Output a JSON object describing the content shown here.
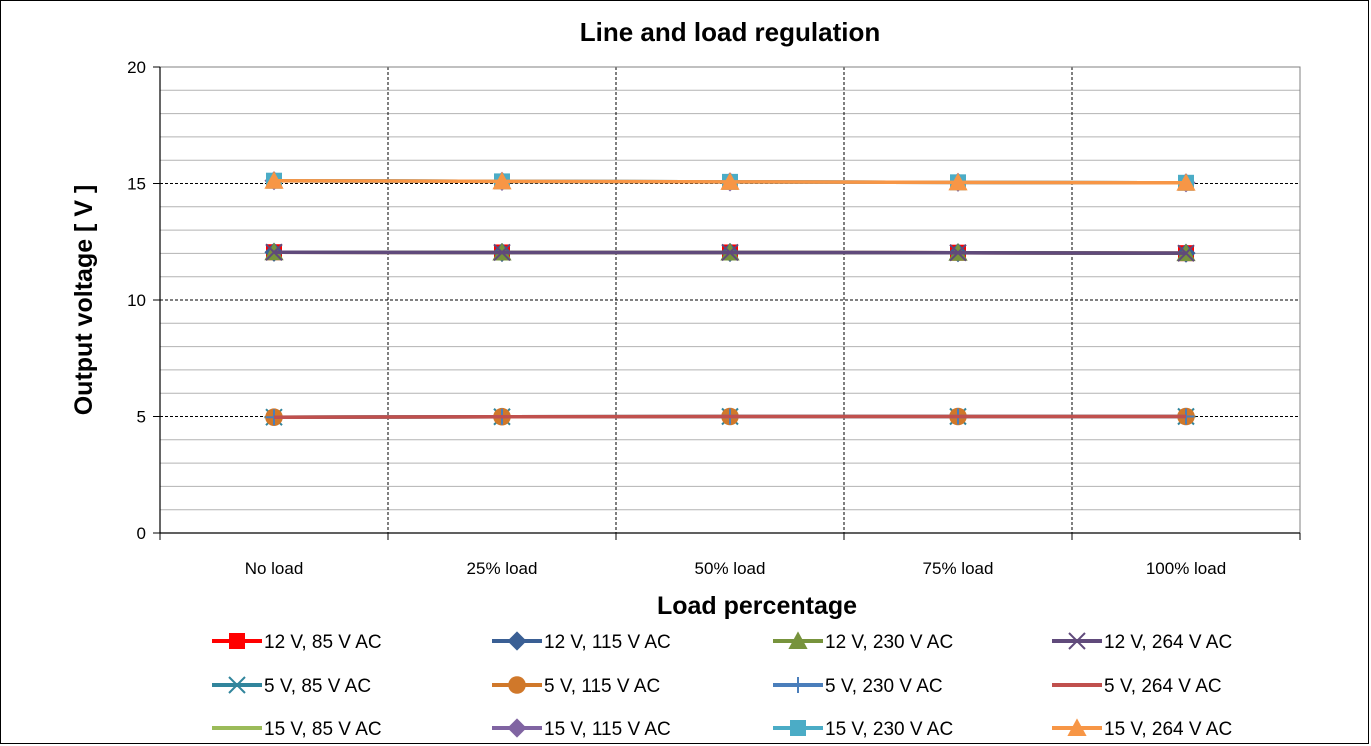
{
  "chart_data": {
    "type": "line",
    "title": "Line and load regulation",
    "xlabel": "Load percentage",
    "ylabel": "Output voltage [ V ]",
    "categories": [
      "No load",
      "25% load",
      "50% load",
      "75% load",
      "100% load"
    ],
    "ylim": [
      0,
      20
    ],
    "yticks": [
      0,
      5,
      10,
      15,
      20
    ],
    "grid": "major and minor horizontal, dashed vertical",
    "legend_position": "bottom",
    "series": [
      {
        "name": "12 V, 85 V AC",
        "values": [
          12.05,
          12.04,
          12.04,
          12.03,
          12.01
        ],
        "color": "#ff0000",
        "marker": "square"
      },
      {
        "name": "12 V, 115 V AC",
        "values": [
          12.05,
          12.04,
          12.04,
          12.03,
          12.01
        ],
        "color": "#3a5f94",
        "marker": "diamond"
      },
      {
        "name": "12 V, 230 V AC",
        "values": [
          12.05,
          12.04,
          12.04,
          12.03,
          12.01
        ],
        "color": "#77933c",
        "marker": "triangle"
      },
      {
        "name": "12 V, 264 V AC",
        "values": [
          12.05,
          12.04,
          12.04,
          12.03,
          12.01
        ],
        "color": "#604a7b",
        "marker": "x"
      },
      {
        "name": "5 V, 85 V AC",
        "values": [
          4.97,
          4.99,
          5.0,
          5.0,
          5.0
        ],
        "color": "#31859c",
        "marker": "star"
      },
      {
        "name": "5 V, 115 V AC",
        "values": [
          4.97,
          4.99,
          5.0,
          5.0,
          5.0
        ],
        "color": "#d0782a",
        "marker": "circle"
      },
      {
        "name": "5 V, 230 V AC",
        "values": [
          4.97,
          4.99,
          5.0,
          5.0,
          5.0
        ],
        "color": "#4a7ebb",
        "marker": "plus"
      },
      {
        "name": "5 V, 264 V AC",
        "values": [
          4.97,
          4.99,
          5.0,
          5.0,
          5.0
        ],
        "color": "#c0504d",
        "marker": "none"
      },
      {
        "name": "15 V, 85 V AC",
        "values": [
          15.12,
          15.09,
          15.07,
          15.05,
          15.03
        ],
        "color": "#9bbb59",
        "marker": "none"
      },
      {
        "name": "15 V, 115 V AC",
        "values": [
          15.12,
          15.09,
          15.07,
          15.05,
          15.03
        ],
        "color": "#8064a2",
        "marker": "diamond"
      },
      {
        "name": "15 V, 230 V AC",
        "values": [
          15.12,
          15.09,
          15.07,
          15.05,
          15.03
        ],
        "color": "#4bacc6",
        "marker": "square"
      },
      {
        "name": "15 V, 264 V AC",
        "values": [
          15.12,
          15.09,
          15.07,
          15.05,
          15.03
        ],
        "color": "#f79646",
        "marker": "triangle"
      }
    ]
  }
}
